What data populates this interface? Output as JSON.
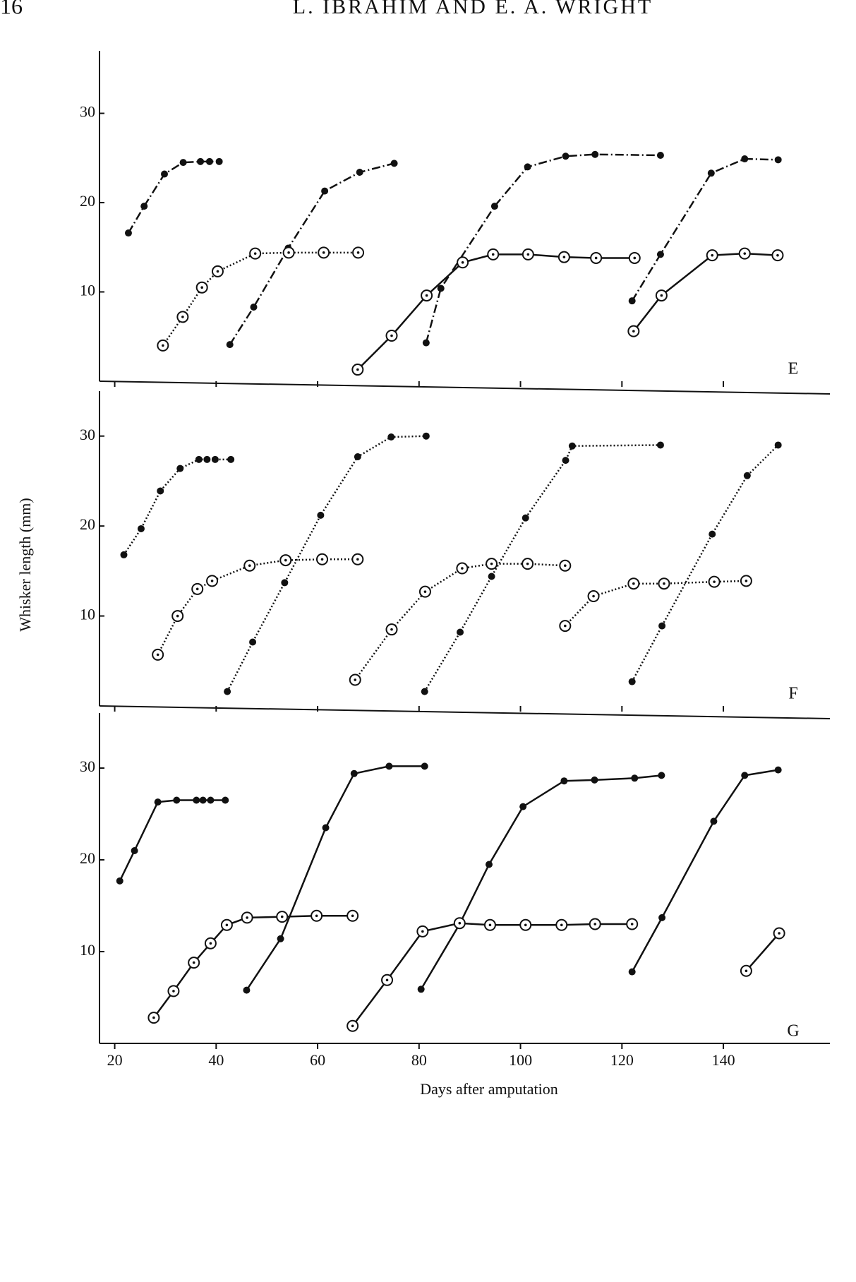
{
  "page_header": {
    "page": "16",
    "authors": "L. IBRAHIM AND E. A. WRIGHT"
  },
  "chart_data": [
    {
      "type": "line",
      "panel": "E",
      "xlim": [
        17,
        161
      ],
      "ylim": [
        0,
        37
      ],
      "xticks": [
        20,
        40,
        60,
        80,
        100,
        120,
        140
      ],
      "xtick_labels": false,
      "yticks": [
        10,
        20,
        30
      ],
      "series": [
        {
          "marker": "filled",
          "linestyle": "dashdot",
          "color": "#111",
          "x": [
            22.7,
            25.8,
            29.8,
            33.5,
            36.9,
            38.7,
            40.6
          ],
          "values": [
            16.6,
            19.6,
            23.2,
            24.5,
            24.6,
            24.6,
            24.6
          ]
        },
        {
          "marker": "filled",
          "linestyle": "dashdot",
          "color": "#111",
          "x": [
            42.7,
            47.4,
            54.2,
            61.4,
            68.3,
            75.1
          ],
          "values": [
            4.1,
            8.3,
            14.9,
            21.3,
            23.4,
            24.4
          ]
        },
        {
          "marker": "filled",
          "linestyle": "dashdot",
          "color": "#111",
          "x": [
            81.4,
            84.3,
            94.9,
            101.4,
            108.9,
            114.7,
            127.6
          ],
          "values": [
            4.3,
            10.4,
            19.6,
            24.0,
            25.2,
            25.4,
            25.3
          ]
        },
        {
          "marker": "filled",
          "linestyle": "dashdot",
          "color": "#111",
          "x": [
            122,
            127.6,
            137.6,
            144.2,
            150.8
          ],
          "values": [
            9.0,
            14.2,
            23.3,
            24.9,
            24.8
          ]
        },
        {
          "marker": "open",
          "linestyle": "dotted",
          "color": "#111",
          "x": [
            29.5,
            33.4,
            37.2,
            40.3,
            47.7,
            54.3,
            61.2,
            68.0
          ],
          "values": [
            4.0,
            7.2,
            10.5,
            12.3,
            14.3,
            14.4,
            14.4,
            14.4
          ]
        },
        {
          "marker": "open",
          "linestyle": "solid",
          "color": "#111",
          "x": [
            67.9,
            74.6,
            81.5,
            88.6,
            94.6,
            101.5,
            108.6,
            114.9,
            122.5
          ],
          "values": [
            1.3,
            5.1,
            9.6,
            13.3,
            14.2,
            14.2,
            13.9,
            13.8,
            13.8
          ]
        },
        {
          "marker": "open",
          "linestyle": "solid",
          "color": "#111",
          "x": [
            122.3,
            127.8,
            137.8,
            144.2,
            150.7
          ],
          "values": [
            5.6,
            9.6,
            14.1,
            14.3,
            14.1
          ]
        }
      ]
    },
    {
      "type": "line",
      "panel": "F",
      "ylabel": "Whisker length (mm)",
      "xlim": [
        17,
        161
      ],
      "ylim": [
        0,
        35
      ],
      "xticks": [
        20,
        40,
        60,
        80,
        100,
        120,
        140
      ],
      "xtick_labels": false,
      "yticks": [
        10,
        20,
        30
      ],
      "series": [
        {
          "marker": "filled",
          "linestyle": "dotted",
          "color": "#111",
          "x": [
            21.8,
            25.2,
            29.0,
            32.9,
            36.6,
            38.2,
            39.8,
            42.9
          ],
          "values": [
            16.8,
            19.7,
            23.9,
            26.4,
            27.4,
            27.4,
            27.4,
            27.4
          ]
        },
        {
          "marker": "filled",
          "linestyle": "dotted",
          "color": "#111",
          "x": [
            42.2,
            47.2,
            53.5,
            60.6,
            67.9,
            74.5,
            81.4
          ],
          "values": [
            1.6,
            7.1,
            13.7,
            21.2,
            27.7,
            29.9,
            30.0
          ]
        },
        {
          "marker": "filled",
          "linestyle": "dotted",
          "color": "#111",
          "x": [
            81.1,
            88.1,
            94.3,
            101.0,
            108.9,
            110.2,
            127.6
          ],
          "values": [
            1.6,
            8.2,
            14.4,
            20.9,
            27.3,
            28.9,
            29.0
          ]
        },
        {
          "marker": "filled",
          "linestyle": "dotted",
          "color": "#111",
          "x": [
            122,
            127.9,
            137.8,
            144.7,
            150.8
          ],
          "values": [
            2.7,
            8.9,
            19.1,
            25.6,
            29.0
          ]
        },
        {
          "marker": "open",
          "linestyle": "dotted",
          "color": "#111",
          "x": [
            28.5,
            32.4,
            36.3,
            39.2,
            46.6,
            53.7,
            60.9,
            67.9
          ],
          "values": [
            5.7,
            10.0,
            13.0,
            13.9,
            15.6,
            16.2,
            16.3,
            16.3
          ]
        },
        {
          "marker": "open",
          "linestyle": "dotted",
          "color": "#111",
          "x": [
            67.4,
            74.6,
            81.2,
            88.5,
            94.3,
            101.4,
            108.8
          ],
          "values": [
            2.9,
            8.5,
            12.7,
            15.3,
            15.8,
            15.8,
            15.6
          ]
        },
        {
          "marker": "open",
          "linestyle": "dotted",
          "color": "#111",
          "x": [
            108.8,
            114.4,
            122.3,
            128.3,
            138.2,
            144.5
          ],
          "values": [
            8.9,
            12.2,
            13.6,
            13.6,
            13.8,
            13.9
          ]
        }
      ]
    },
    {
      "type": "line",
      "panel": "G",
      "xlabel": "Days after amputation",
      "xlim": [
        17,
        161
      ],
      "ylim": [
        0,
        36
      ],
      "xticks": [
        20,
        40,
        60,
        80,
        100,
        120,
        140
      ],
      "xtick_labels": true,
      "yticks": [
        10,
        20,
        30
      ],
      "series": [
        {
          "marker": "filled",
          "linestyle": "solid",
          "color": "#111",
          "x": [
            21.0,
            23.9,
            28.5,
            32.2,
            36.1,
            37.4,
            38.9,
            41.8
          ],
          "values": [
            17.7,
            21.0,
            26.3,
            26.5,
            26.5,
            26.5,
            26.5,
            26.5
          ]
        },
        {
          "marker": "filled",
          "linestyle": "solid",
          "color": "#111",
          "x": [
            46.0,
            52.7,
            61.6,
            67.2,
            74.1,
            81.1
          ],
          "values": [
            5.8,
            11.4,
            23.5,
            29.4,
            30.2,
            30.2
          ]
        },
        {
          "marker": "filled",
          "linestyle": "solid",
          "color": "#111",
          "x": [
            80.4,
            88.0,
            93.8,
            100.5,
            108.6,
            114.6,
            122.5,
            127.8
          ],
          "values": [
            5.9,
            13.0,
            19.5,
            25.8,
            28.6,
            28.7,
            28.9,
            29.2
          ]
        },
        {
          "marker": "filled",
          "linestyle": "solid",
          "color": "#111",
          "x": [
            122,
            127.9,
            138.1,
            144.2,
            150.8
          ],
          "values": [
            7.8,
            13.7,
            24.2,
            29.2,
            29.8
          ]
        },
        {
          "marker": "open",
          "linestyle": "solid",
          "color": "#111",
          "x": [
            27.7,
            31.6,
            35.6,
            38.9,
            42.1,
            46.1,
            53.0,
            59.8,
            66.9
          ],
          "values": [
            2.8,
            5.7,
            8.8,
            10.9,
            12.9,
            13.7,
            13.8,
            13.9,
            13.9
          ]
        },
        {
          "marker": "open",
          "linestyle": "solid",
          "color": "#111",
          "x": [
            66.9,
            73.7,
            80.7,
            88.0,
            94.0,
            101.0,
            108.1,
            114.7,
            122.0
          ],
          "values": [
            1.9,
            6.9,
            12.2,
            13.1,
            12.9,
            12.9,
            12.9,
            13.0,
            13.0
          ]
        },
        {
          "marker": "open",
          "linestyle": "solid",
          "color": "#111",
          "x": [
            144.5,
            151.0
          ],
          "values": [
            7.9,
            12.0
          ]
        }
      ]
    }
  ]
}
